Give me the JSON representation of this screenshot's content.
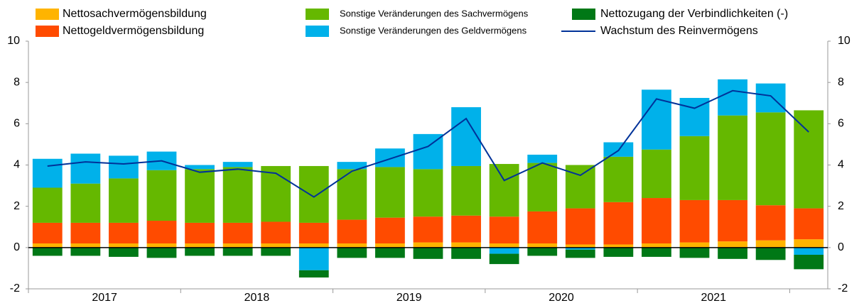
{
  "chart_data": {
    "type": "bar",
    "stacked": true,
    "categories": [
      "2017",
      null,
      null,
      null,
      "2018",
      null,
      null,
      null,
      "2019",
      null,
      null,
      null,
      "2020",
      null,
      null,
      null,
      "2021",
      null,
      null,
      null,
      null
    ],
    "ylim": [
      -2,
      10
    ],
    "yticks": [
      -2,
      0,
      2,
      4,
      6,
      8,
      10
    ],
    "y2lim": [
      -2,
      10
    ],
    "y2ticks": [
      -2,
      0,
      2,
      4,
      6,
      8,
      10
    ],
    "grid": false,
    "series": [
      {
        "name": "Nettosachvermögensbildung",
        "kind": "bar",
        "color": "#ffb400",
        "values": [
          0.2,
          0.2,
          0.2,
          0.2,
          0.2,
          0.2,
          0.2,
          0.2,
          0.2,
          0.2,
          0.25,
          0.25,
          0.2,
          0.2,
          0.15,
          0.15,
          0.2,
          0.25,
          0.3,
          0.35,
          0.4
        ]
      },
      {
        "name": "Nettogeldvermögensbildung",
        "kind": "bar",
        "color": "#ff4b00",
        "values": [
          1.0,
          1.0,
          1.0,
          1.1,
          1.0,
          1.0,
          1.05,
          1.0,
          1.15,
          1.25,
          1.25,
          1.3,
          1.3,
          1.55,
          1.75,
          2.05,
          2.2,
          2.05,
          2.0,
          1.7,
          1.5
        ]
      },
      {
        "name": "Sonstige Veränderungen des Sachvermögens",
        "kind": "bar",
        "color": "#65b800",
        "values": [
          1.7,
          1.9,
          2.15,
          2.45,
          2.6,
          2.7,
          2.7,
          2.75,
          2.45,
          2.45,
          2.3,
          2.4,
          2.55,
          2.35,
          2.1,
          2.2,
          2.35,
          3.1,
          4.1,
          4.5,
          4.75
        ]
      },
      {
        "name": "Sonstige Veränderungen des Geldvermögens",
        "kind": "bar",
        "color": "#00b1ea",
        "values": [
          1.4,
          1.45,
          1.1,
          0.9,
          0.2,
          0.25,
          0,
          -1.1,
          0.35,
          0.9,
          1.7,
          2.85,
          -0.3,
          0.4,
          -0.1,
          0.7,
          2.9,
          1.85,
          1.75,
          1.4,
          -0.35
        ]
      },
      {
        "name": "Nettozugang der Verbindlichkeiten (-)",
        "kind": "bar",
        "color": "#007816",
        "values": [
          -0.4,
          -0.4,
          -0.45,
          -0.5,
          -0.4,
          -0.4,
          -0.4,
          -0.35,
          -0.5,
          -0.5,
          -0.55,
          -0.55,
          -0.5,
          -0.4,
          -0.4,
          -0.45,
          -0.45,
          -0.5,
          -0.55,
          -0.6,
          -0.7
        ]
      },
      {
        "name": "Wachstum des Reinvermögens",
        "kind": "line",
        "color": "#003299",
        "values": [
          3.95,
          4.15,
          4.05,
          4.2,
          3.65,
          3.8,
          3.6,
          2.45,
          3.7,
          4.3,
          4.9,
          6.25,
          3.25,
          4.1,
          3.5,
          4.7,
          7.2,
          6.75,
          7.6,
          7.35,
          5.6
        ]
      }
    ]
  }
}
